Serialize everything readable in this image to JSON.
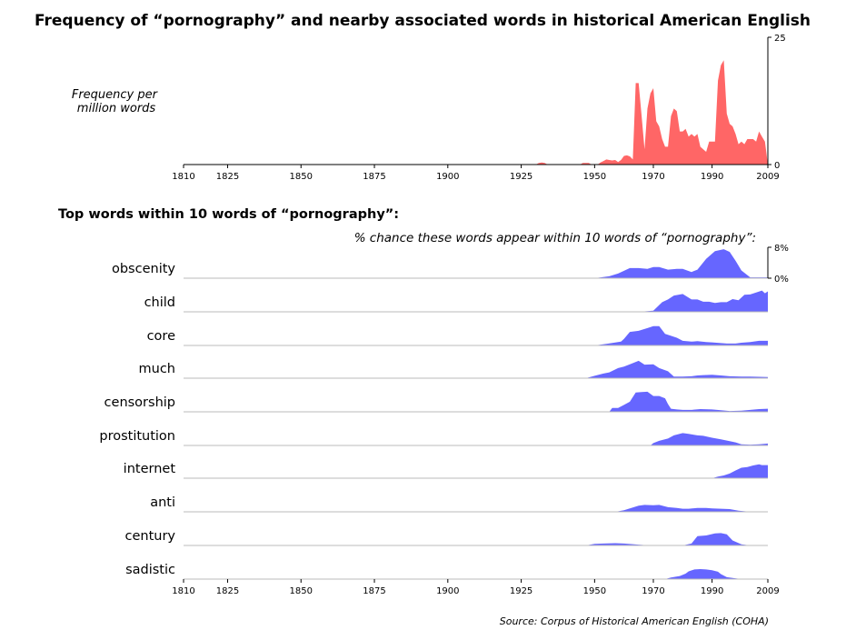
{
  "title": "Frequency of “pornography” and nearby associated words in historical American English",
  "top_ylabel": "Frequency per million words",
  "section_title": "Top words within 10 words of “pornography”:",
  "small_caption": "% chance these words appear within 10 words of “pornography”:",
  "source": "Source: Corpus of Historical American English (COHA)",
  "colors": {
    "top": "#ff6666",
    "small": "#6666ff",
    "baseline": "#bbbbbb"
  },
  "chart_data": [
    {
      "type": "area",
      "title": "Frequency of “pornography” and nearby associated words in historical American English",
      "ylabel": "Frequency per million words",
      "xlim": [
        1810,
        2009
      ],
      "ylim": [
        0,
        25
      ],
      "x_ticks": [
        1810,
        1825,
        1850,
        1875,
        1900,
        1925,
        1950,
        1970,
        1990,
        2009
      ],
      "y_ticks": [
        0,
        25
      ],
      "series": [
        {
          "x": [
            1810,
            1930,
            1931,
            1932,
            1933,
            1934,
            1945,
            1946,
            1948,
            1949,
            1951,
            1952,
            1953,
            1954,
            1955,
            1956,
            1957,
            1958,
            1959,
            1960,
            1961,
            1962,
            1963,
            1964,
            1965,
            1966,
            1967,
            1968,
            1969,
            1970,
            1971,
            1972,
            1973,
            1974,
            1975,
            1976,
            1977,
            1978,
            1979,
            1980,
            1981,
            1982,
            1983,
            1984,
            1985,
            1986,
            1987,
            1988,
            1989,
            1990,
            1991,
            1992,
            1993,
            1994,
            1995,
            1996,
            1997,
            1998,
            1999,
            2000,
            2001,
            2002,
            2003,
            2004,
            2005,
            2006,
            2007,
            2008,
            2009
          ],
          "y": [
            0,
            0,
            0.3,
            0.4,
            0.3,
            0,
            0,
            0.3,
            0.3,
            0,
            0,
            0.4,
            0.7,
            1.0,
            0.9,
            0.8,
            0.9,
            0.5,
            0.9,
            1.7,
            1.8,
            1.6,
            1.0,
            16,
            16,
            9.5,
            3.0,
            11,
            14,
            15,
            8.5,
            7.5,
            5,
            3.5,
            3.5,
            9.5,
            11,
            10.5,
            6.5,
            6.5,
            7,
            5.5,
            6,
            5.5,
            6,
            3.5,
            3.0,
            2.5,
            4.5,
            4.5,
            4.5,
            16.5,
            19.5,
            20.5,
            10,
            8,
            7.5,
            6,
            4,
            4.5,
            4,
            5,
            5,
            5,
            4.5,
            6.5,
            5.5,
            4.5,
            0
          ]
        }
      ]
    },
    {
      "type": "area",
      "title": "Top words within 10 words of “pornography”:",
      "ylabel": "% chance these words appear within 10 words of “pornography”:",
      "xlim": [
        1810,
        2009
      ],
      "ylim": [
        0,
        8
      ],
      "x_ticks": [
        1810,
        1825,
        1850,
        1875,
        1900,
        1925,
        1950,
        1970,
        1990,
        2009
      ],
      "y_ticks": [
        "0%",
        "8%"
      ],
      "series": [
        {
          "name": "obscenity",
          "x": [
            1810,
            1950,
            1955,
            1958,
            1962,
            1965,
            1968,
            1970,
            1972,
            1975,
            1978,
            1980,
            1983,
            1985,
            1988,
            1991,
            1994,
            1996,
            1998,
            2000,
            2003,
            2009
          ],
          "y": [
            0,
            0,
            0.5,
            1.2,
            2.6,
            2.6,
            2.4,
            2.9,
            2.9,
            2.2,
            2.4,
            2.4,
            1.6,
            2.2,
            5,
            7,
            7.5,
            6.8,
            4.5,
            2,
            0.2,
            0.2
          ]
        },
        {
          "name": "child",
          "x": [
            1810,
            1965,
            1970,
            1973,
            1975,
            1977,
            1980,
            1983,
            1985,
            1987,
            1989,
            1991,
            1993,
            1995,
            1997,
            1999,
            2001,
            2003,
            2005,
            2007,
            2008,
            2009
          ],
          "y": [
            0,
            0,
            0.3,
            2.5,
            3.2,
            4.2,
            4.6,
            3.2,
            3.2,
            2.6,
            2.6,
            2.3,
            2.5,
            2.5,
            3.3,
            3,
            4.4,
            4.5,
            5,
            5.5,
            4.8,
            5.3
          ]
        },
        {
          "name": "core",
          "x": [
            1810,
            1950,
            1954,
            1959,
            1960,
            1962,
            1965,
            1968,
            1970,
            1972,
            1974,
            1976,
            1978,
            1980,
            1983,
            1985,
            1988,
            1990,
            1993,
            1995,
            1998,
            2000,
            2003,
            2006,
            2009
          ],
          "y": [
            0,
            0,
            0.4,
            1.0,
            1.7,
            3.5,
            3.8,
            4.5,
            5,
            5,
            3,
            2.5,
            2.0,
            1.2,
            1.0,
            1.1,
            0.9,
            0.8,
            0.6,
            0.5,
            0.5,
            0.7,
            0.9,
            1.2,
            1.2
          ]
        },
        {
          "name": "much",
          "x": [
            1810,
            1947,
            1950,
            1953,
            1955,
            1958,
            1960,
            1962,
            1965,
            1967,
            1970,
            1972,
            1975,
            1977,
            1980,
            1983,
            1985,
            1987,
            1990,
            1993,
            1996,
            2000,
            2003,
            2009
          ],
          "y": [
            0,
            0,
            0.6,
            1.2,
            1.5,
            2.6,
            3,
            3.6,
            4.5,
            3.5,
            3.6,
            2.6,
            1.8,
            0.4,
            0.4,
            0.5,
            0.7,
            0.8,
            0.9,
            0.7,
            0.5,
            0.4,
            0.4,
            0.3
          ]
        },
        {
          "name": "censorship",
          "x": [
            1810,
            1955,
            1956,
            1958,
            1960,
            1962,
            1964,
            1966,
            1968,
            1970,
            1972,
            1974,
            1975,
            1976,
            1978,
            1980,
            1983,
            1986,
            1990,
            1993,
            1996,
            2000,
            2003,
            2006,
            2009
          ],
          "y": [
            0,
            0,
            1.0,
            1.0,
            1.8,
            2.6,
            5,
            5.1,
            5.2,
            4.1,
            4.1,
            3.5,
            2,
            0.8,
            0.6,
            0.5,
            0.5,
            0.7,
            0.6,
            0.4,
            0.2,
            0.3,
            0.5,
            0.7,
            0.8
          ]
        },
        {
          "name": "prostitution",
          "x": [
            1810,
            1969,
            1970,
            1972,
            1975,
            1977,
            1980,
            1982,
            1985,
            1987,
            1990,
            1993,
            1996,
            1998,
            2000,
            2003,
            2006,
            2009
          ],
          "y": [
            0,
            0,
            0.6,
            1.2,
            1.8,
            2.6,
            3.2,
            3,
            2.6,
            2.5,
            2,
            1.6,
            1.1,
            0.8,
            0.3,
            0.2,
            0.3,
            0.5
          ]
        },
        {
          "name": "internet",
          "x": [
            1810,
            1990,
            1992,
            1994,
            1996,
            1998,
            2000,
            2002,
            2004,
            2006,
            2007,
            2008,
            2009
          ],
          "y": [
            0,
            0,
            0.4,
            0.7,
            1.2,
            2.0,
            2.7,
            2.9,
            3.3,
            3.6,
            3.4,
            3.4,
            3.4
          ]
        },
        {
          "name": "anti",
          "x": [
            1810,
            1957,
            1960,
            1962,
            1965,
            1967,
            1970,
            1972,
            1975,
            1978,
            1980,
            1982,
            1985,
            1988,
            1990,
            1993,
            1996,
            1999,
            2002,
            2009
          ],
          "y": [
            0,
            0,
            0.4,
            0.9,
            1.6,
            1.8,
            1.7,
            1.8,
            1.2,
            1.0,
            0.8,
            0.8,
            1.0,
            1.0,
            0.9,
            0.8,
            0.7,
            0.3,
            0.1,
            0
          ]
        },
        {
          "name": "century",
          "x": [
            1810,
            1947,
            1950,
            1953,
            1957,
            1960,
            1965,
            1969,
            1980,
            1983,
            1985,
            1988,
            1991,
            1993,
            1995,
            1997,
            2000,
            2003,
            2009
          ],
          "y": [
            0,
            0,
            0.4,
            0.5,
            0.6,
            0.5,
            0.2,
            0,
            0,
            0.5,
            2.4,
            2.6,
            3.1,
            3.2,
            2.9,
            1.3,
            0.3,
            0,
            0
          ]
        },
        {
          "name": "sadistic",
          "x": [
            1810,
            1974,
            1976,
            1979,
            1981,
            1982,
            1984,
            1986,
            1988,
            1990,
            1992,
            1993,
            1995,
            1997,
            2000,
            2009
          ],
          "y": [
            0,
            0,
            0.4,
            0.8,
            1.4,
            2,
            2.5,
            2.6,
            2.5,
            2.3,
            1.9,
            1.3,
            0.5,
            0.3,
            0,
            0
          ]
        }
      ]
    }
  ]
}
